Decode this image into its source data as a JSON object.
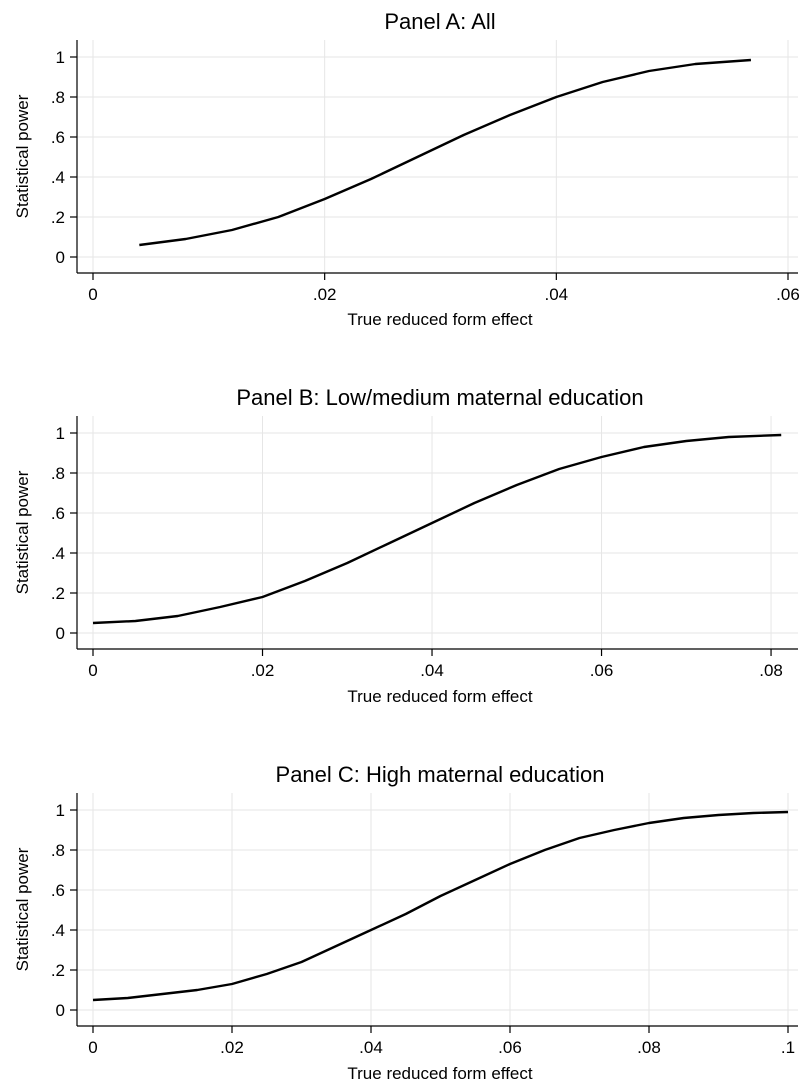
{
  "chart_data": [
    {
      "type": "line",
      "title": "Panel A: All",
      "xlabel": "True reduced form effect",
      "ylabel": "Statistical power",
      "xlim": [
        0,
        0.06
      ],
      "ylim": [
        0,
        1
      ],
      "xticks": [
        0,
        0.02,
        0.04,
        0.06
      ],
      "xtick_labels": [
        "0",
        ".02",
        ".04",
        ".06"
      ],
      "yticks": [
        0,
        0.2,
        0.4,
        0.6,
        0.8,
        1
      ],
      "ytick_labels": [
        "0",
        ".2",
        ".4",
        ".6",
        ".8",
        "1"
      ],
      "grid": true,
      "series": [
        {
          "color": "#000000",
          "x": [
            0.004,
            0.008,
            0.012,
            0.016,
            0.02,
            0.024,
            0.028,
            0.032,
            0.036,
            0.04,
            0.044,
            0.048,
            0.052,
            0.0568
          ],
          "y": [
            0.06,
            0.09,
            0.135,
            0.2,
            0.29,
            0.39,
            0.5,
            0.61,
            0.71,
            0.8,
            0.875,
            0.93,
            0.965,
            0.985
          ]
        }
      ]
    },
    {
      "type": "line",
      "title": "Panel B: Low/medium maternal education",
      "xlabel": "True reduced form effect",
      "ylabel": "Statistical power",
      "xlim": [
        0,
        0.082
      ],
      "ylim": [
        0,
        1
      ],
      "xticks": [
        0,
        0.02,
        0.04,
        0.06,
        0.08
      ],
      "xtick_labels": [
        "0",
        ".02",
        ".04",
        ".06",
        ".08"
      ],
      "yticks": [
        0,
        0.2,
        0.4,
        0.6,
        0.8,
        1
      ],
      "ytick_labels": [
        "0",
        ".2",
        ".4",
        ".6",
        ".8",
        "1"
      ],
      "grid": true,
      "series": [
        {
          "color": "#000000",
          "x": [
            0,
            0.005,
            0.01,
            0.015,
            0.02,
            0.025,
            0.03,
            0.035,
            0.04,
            0.045,
            0.05,
            0.055,
            0.06,
            0.065,
            0.07,
            0.075,
            0.0812
          ],
          "y": [
            0.05,
            0.06,
            0.085,
            0.13,
            0.18,
            0.26,
            0.35,
            0.45,
            0.55,
            0.65,
            0.74,
            0.82,
            0.88,
            0.93,
            0.96,
            0.98,
            0.99
          ]
        }
      ]
    },
    {
      "type": "line",
      "title": "Panel C: High maternal education",
      "xlabel": "True reduced form effect",
      "ylabel": "Statistical power",
      "xlim": [
        0,
        0.1
      ],
      "ylim": [
        0,
        1
      ],
      "xticks": [
        0,
        0.02,
        0.04,
        0.06,
        0.08,
        0.1
      ],
      "xtick_labels": [
        "0",
        ".02",
        ".04",
        ".06",
        ".08",
        ".1"
      ],
      "yticks": [
        0,
        0.2,
        0.4,
        0.6,
        0.8,
        1
      ],
      "ytick_labels": [
        "0",
        ".2",
        ".4",
        ".6",
        ".8",
        "1"
      ],
      "grid": true,
      "series": [
        {
          "color": "#000000",
          "x": [
            0,
            0.005,
            0.01,
            0.015,
            0.02,
            0.025,
            0.03,
            0.035,
            0.04,
            0.045,
            0.05,
            0.055,
            0.06,
            0.065,
            0.07,
            0.075,
            0.08,
            0.085,
            0.09,
            0.095,
            0.1
          ],
          "y": [
            0.05,
            0.06,
            0.08,
            0.1,
            0.13,
            0.18,
            0.24,
            0.32,
            0.4,
            0.48,
            0.57,
            0.65,
            0.73,
            0.8,
            0.86,
            0.9,
            0.935,
            0.96,
            0.975,
            0.985,
            0.99
          ]
        }
      ]
    }
  ]
}
